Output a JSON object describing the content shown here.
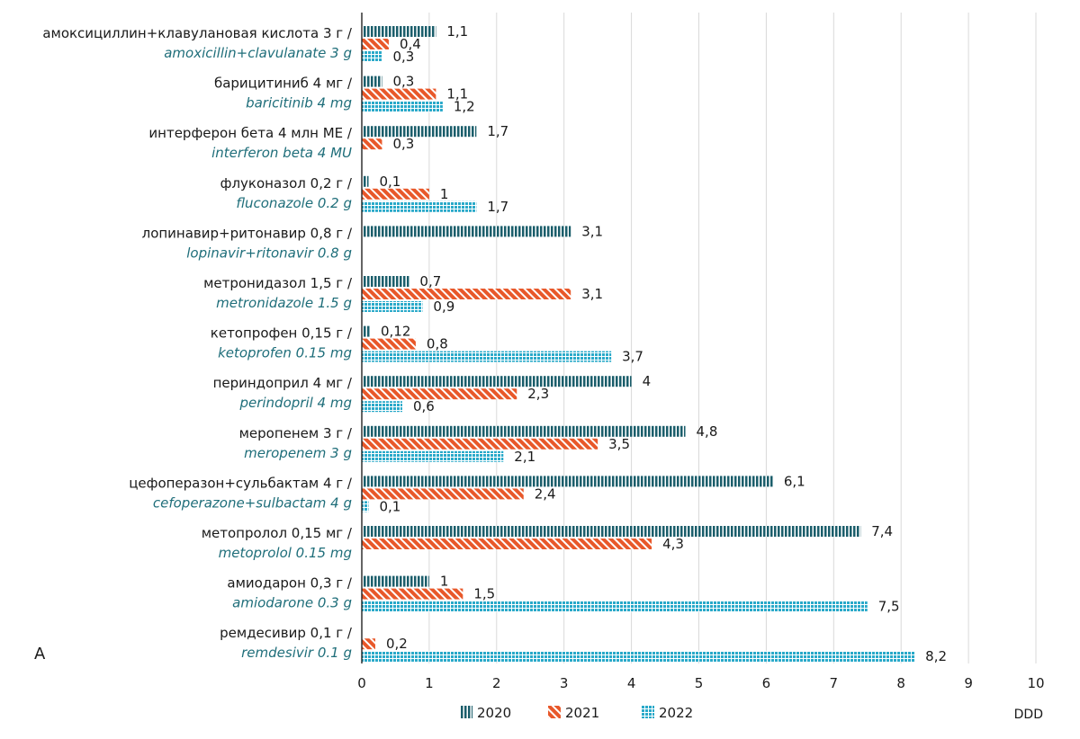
{
  "panel_label": "A",
  "chart_data": {
    "type": "bar",
    "orientation": "horizontal",
    "xlim": [
      0,
      10
    ],
    "x_ticks": [
      "0",
      "1",
      "2",
      "3",
      "4",
      "5",
      "6",
      "7",
      "8",
      "9",
      "10"
    ],
    "xlabel": "DDD",
    "grid": "vertical",
    "legend_placement": "bottom",
    "categories": [
      {
        "ru": "амоксициллин+клавулановая кислота 3 г /",
        "en": "amoxicillin+clavulanate 3 g"
      },
      {
        "ru": "барицитиниб 4 мг /",
        "en": "baricitinib 4 mg"
      },
      {
        "ru": "интерферон бета 4 млн МЕ /",
        "en": "interferon beta 4 MU"
      },
      {
        "ru": "флуконазол 0,2 г /",
        "en": "fluconazole 0.2 g"
      },
      {
        "ru": "лопинавир+ритонавир 0,8 г /",
        "en": "lopinavir+ritonavir 0.8 g"
      },
      {
        "ru": "метронидазол 1,5 г /",
        "en": "metronidazole 1.5 g"
      },
      {
        "ru": "кетопрофен 0,15 г /",
        "en": "ketoprofen 0.15 mg"
      },
      {
        "ru": "периндоприл 4 мг /",
        "en": "perindopril 4 mg"
      },
      {
        "ru": "меропенем 3 г /",
        "en": "meropenem 3 g"
      },
      {
        "ru": "цефоперазон+сульбактам 4 г /",
        "en": "cefoperazone+sulbactam 4 g"
      },
      {
        "ru": "метопролол 0,15 мг /",
        "en": "metoprolol 0.15 mg"
      },
      {
        "ru": "амиодарон 0,3 г /",
        "en": "amiodarone 0.3 g"
      },
      {
        "ru": "ремдесивир 0,1 г /",
        "en": "remdesivir 0.1 g"
      }
    ],
    "series": [
      {
        "name": "2020",
        "color": "#1b5e6b",
        "pattern": "vertical-stripes",
        "values": [
          1.1,
          0.3,
          1.7,
          0.1,
          3.1,
          0.7,
          0.12,
          4,
          4.8,
          6.1,
          7.4,
          1,
          null
        ],
        "labels": [
          "1,1",
          "0,3",
          "1,7",
          "0,1",
          "3,1",
          "0,7",
          "0,12",
          "4",
          "4,8",
          "6,1",
          "7,4",
          "1",
          ""
        ]
      },
      {
        "name": "2021",
        "color": "#e8582a",
        "pattern": "diagonal-stripes",
        "values": [
          0.4,
          1.1,
          0.3,
          1,
          null,
          3.1,
          0.8,
          2.3,
          3.5,
          2.4,
          4.3,
          1.5,
          0.2
        ],
        "labels": [
          "0,4",
          "1,1",
          "0,3",
          "1",
          "",
          "3,1",
          "0,8",
          "2,3",
          "3,5",
          "2,4",
          "4,3",
          "1,5",
          "0,2"
        ]
      },
      {
        "name": "2022",
        "color": "#29a9c9",
        "pattern": "grid",
        "values": [
          0.3,
          1.2,
          null,
          1.7,
          null,
          0.9,
          3.7,
          0.6,
          2.1,
          0.1,
          null,
          7.5,
          8.2
        ],
        "labels": [
          "0,3",
          "1,2",
          "",
          "1,7",
          "",
          "0,9",
          "3,7",
          "0,6",
          "2,1",
          "0,1",
          "",
          "7,5",
          "8,2"
        ]
      }
    ]
  }
}
